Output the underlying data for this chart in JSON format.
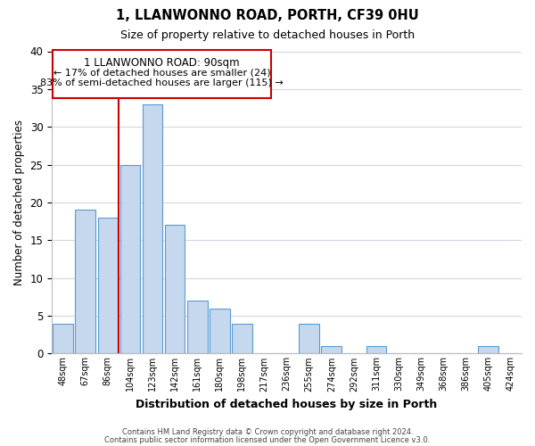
{
  "title": "1, LLANWONNO ROAD, PORTH, CF39 0HU",
  "subtitle": "Size of property relative to detached houses in Porth",
  "xlabel": "Distribution of detached houses by size in Porth",
  "ylabel": "Number of detached properties",
  "bar_labels": [
    "48sqm",
    "67sqm",
    "86sqm",
    "104sqm",
    "123sqm",
    "142sqm",
    "161sqm",
    "180sqm",
    "198sqm",
    "217sqm",
    "236sqm",
    "255sqm",
    "274sqm",
    "292sqm",
    "311sqm",
    "330sqm",
    "349sqm",
    "368sqm",
    "386sqm",
    "405sqm",
    "424sqm"
  ],
  "bar_values": [
    4,
    19,
    18,
    25,
    33,
    17,
    7,
    6,
    4,
    0,
    0,
    4,
    1,
    0,
    1,
    0,
    0,
    0,
    0,
    1,
    0
  ],
  "bar_color": "#c5d8ed",
  "bar_edge_color": "#5b9bd5",
  "vline_x_index": 2.5,
  "reference_line_label": "1 LLANWONNO ROAD: 90sqm",
  "annotation_line1": "← 17% of detached houses are smaller (24)",
  "annotation_line2": "83% of semi-detached houses are larger (115) →",
  "annotation_box_edge": "#cc0000",
  "vline_color": "#cc0000",
  "ylim": [
    0,
    40
  ],
  "yticks": [
    0,
    5,
    10,
    15,
    20,
    25,
    30,
    35,
    40
  ],
  "footer1": "Contains HM Land Registry data © Crown copyright and database right 2024.",
  "footer2": "Contains public sector information licensed under the Open Government Licence v3.0.",
  "bg_color": "#ffffff",
  "grid_color": "#d0d8e4"
}
